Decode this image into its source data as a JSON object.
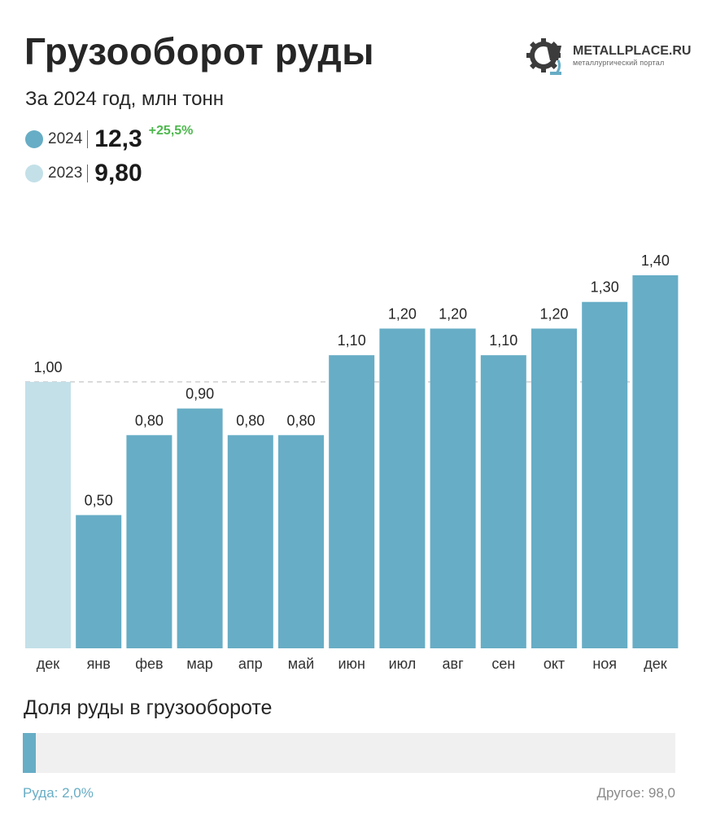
{
  "header": {
    "title": "Грузооборот руды",
    "subtitle": "За 2024 год, млн тонн"
  },
  "logo": {
    "name": "METALLPLACE.RU",
    "tagline": "металлургический портал"
  },
  "legend": [
    {
      "year": "2024",
      "total": "12,3",
      "change": "+25,5%",
      "color": "#67adc5"
    },
    {
      "year": "2023",
      "total": "9,80",
      "change": "",
      "color": "#c3e0e8"
    }
  ],
  "chart_data": {
    "type": "bar",
    "categories": [
      "дек",
      "янв",
      "фев",
      "мар",
      "апр",
      "май",
      "июн",
      "июл",
      "авг",
      "сен",
      "окт",
      "ноя",
      "дек"
    ],
    "values": [
      1.0,
      0.5,
      0.8,
      0.9,
      0.8,
      0.8,
      1.1,
      1.2,
      1.2,
      1.1,
      1.2,
      1.3,
      1.4
    ],
    "labels": [
      "1,00",
      "0,50",
      "0,80",
      "0,90",
      "0,80",
      "0,80",
      "1,10",
      "1,20",
      "1,20",
      "1,10",
      "1,20",
      "1,30",
      "1,40"
    ],
    "series_of_bar": [
      "2023",
      "2024",
      "2024",
      "2024",
      "2024",
      "2024",
      "2024",
      "2024",
      "2024",
      "2024",
      "2024",
      "2024",
      "2024"
    ],
    "reference_line": 1.0,
    "ylim": [
      0,
      1.4
    ],
    "colors": {
      "2024": "#67adc5",
      "2023": "#c3e0e8"
    },
    "grid": false
  },
  "share": {
    "title": "Доля руды в грузообороте",
    "ore_label": "Руда: 2,0%",
    "other_label": "Другое: 98,0",
    "ore_percent": 2.0
  }
}
